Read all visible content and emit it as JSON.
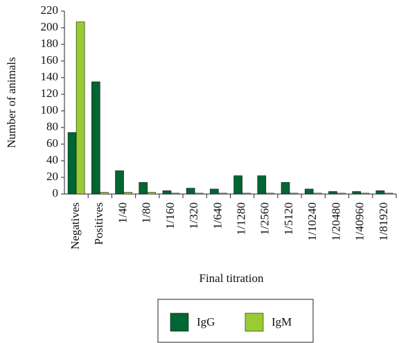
{
  "chart_data": {
    "type": "bar",
    "categories": [
      "Negatives",
      "Positives",
      "1/40",
      "1/80",
      "1/160",
      "1/320",
      "1/640",
      "1/1280",
      "1/2560",
      "1/5120",
      "1/10240",
      "1/20480",
      "1/40960",
      "1/81920"
    ],
    "series": [
      {
        "name": "IgG",
        "color": "#006633",
        "values": [
          74,
          135,
          28,
          14,
          4,
          7,
          6,
          22,
          22,
          14,
          6,
          3,
          3,
          4
        ]
      },
      {
        "name": "IgM",
        "color": "#99cc33",
        "values": [
          207,
          2,
          2,
          2,
          1,
          1,
          1,
          1,
          1,
          1,
          1,
          1,
          1,
          1
        ]
      }
    ],
    "x_label": "Final titration",
    "y_label": "Number of animals",
    "ylim": [
      0,
      220
    ],
    "yticks": [
      0,
      20,
      40,
      60,
      80,
      100,
      120,
      140,
      160,
      180,
      200,
      220
    ],
    "legend": "bottom"
  }
}
